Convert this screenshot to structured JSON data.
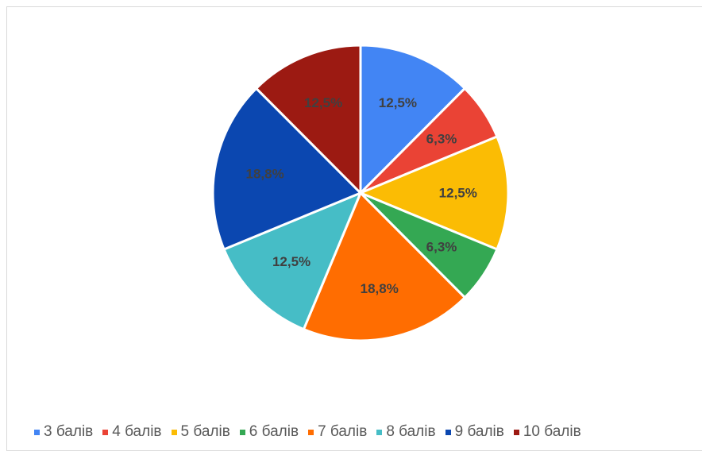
{
  "chart_data": {
    "type": "pie",
    "title": "",
    "slices": [
      {
        "label": "3 балів",
        "value": 12.5,
        "value_label": "12,5%",
        "color": "#4285F4"
      },
      {
        "label": "4 балів",
        "value": 6.3,
        "value_label": "6,3%",
        "color": "#EA4335"
      },
      {
        "label": "5 балів",
        "value": 12.5,
        "value_label": "12,5%",
        "color": "#FBBC04"
      },
      {
        "label": "6 балів",
        "value": 6.3,
        "value_label": "6,3%",
        "color": "#34A853"
      },
      {
        "label": "7 балів",
        "value": 18.8,
        "value_label": "18,8%",
        "color": "#FF6D01"
      },
      {
        "label": "8 балів",
        "value": 12.5,
        "value_label": "12,5%",
        "color": "#46BDC6"
      },
      {
        "label": "9 балів",
        "value": 18.8,
        "value_label": "18,8%",
        "color": "#0B47B0"
      },
      {
        "label": "10 балів",
        "value": 12.5,
        "value_label": "12,5%",
        "color": "#9C1A12"
      }
    ],
    "legend_position": "bottom",
    "data_labels": true
  }
}
